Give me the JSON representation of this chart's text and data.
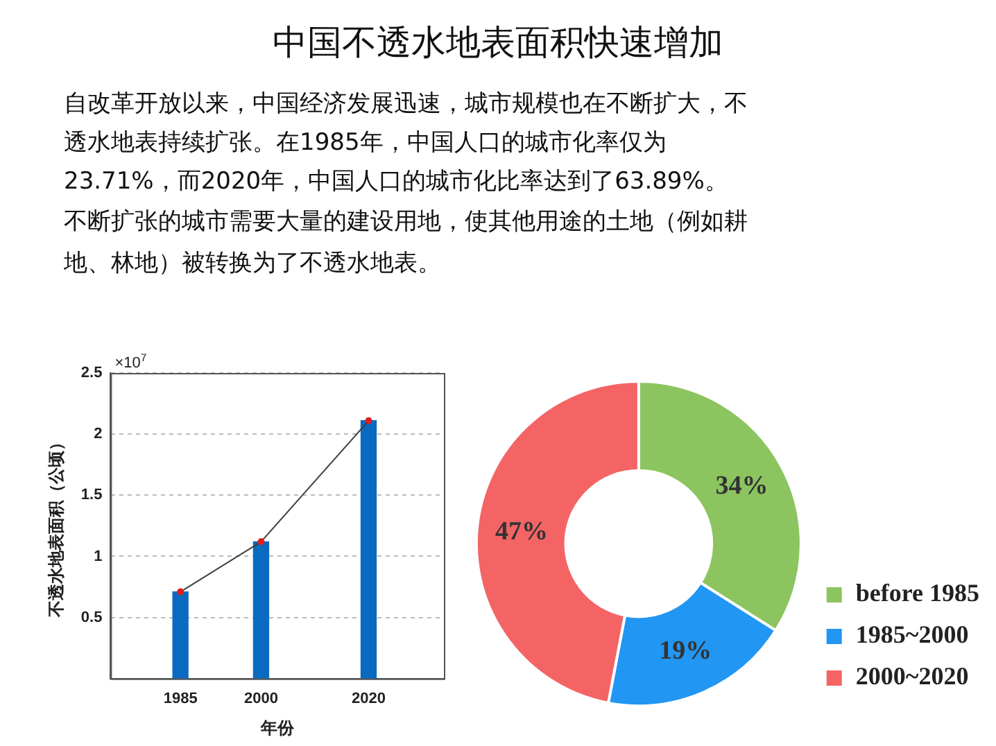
{
  "chart_data": [
    {
      "type": "other",
      "title": "中国不透水地表面积快速增加",
      "annotations": [
        "自改革开放以来，中国经济发展迅速，城市规模也在不断扩大，不",
        "透水地表持续扩张。在1985年，中国人口的城市化率仅为",
        "23.71%，而2020年，中国人口的城市化比率达到了63.89%。",
        "不断扩张的城市需要大量的建设用地，使其他用途的土地（例如耕",
        "地、林地）被转换为了不透水地表。"
      ]
    },
    {
      "type": "bar",
      "x": [
        1985,
        2000,
        2020
      ],
      "xlabel": "年份",
      "ylabel": "不透水地表面积（公顷）",
      "annotations": [
        "×10$^{7}$"
      ],
      "xlim": [
        1972,
        2034
      ],
      "xticks": [
        1985,
        2000,
        2020
      ],
      "ylim": [
        0,
        2.5
      ],
      "yticks": [
        0.5,
        1,
        1.5,
        2,
        2.5
      ],
      "grid": "y",
      "legend": false,
      "series": [
        {
          "type": "bar",
          "color": "#0a6abf",
          "values": [
            0.71,
            1.12,
            2.11
          ]
        },
        {
          "type": "line",
          "color": "#404040",
          "values": [
            0.71,
            1.12,
            2.11
          ],
          "marker": "circle",
          "line_style": "solid"
        }
      ]
    },
    {
      "type": "donut",
      "categories": [
        "before 1985",
        "1985~2000",
        "2000~2020"
      ],
      "values": [
        34,
        19,
        47
      ],
      "colors": [
        "#8cc460",
        "#2196f3",
        "#f46464"
      ],
      "value_labels": [
        "34%",
        "19%",
        "47%"
      ],
      "legend": "bottom right"
    }
  ]
}
